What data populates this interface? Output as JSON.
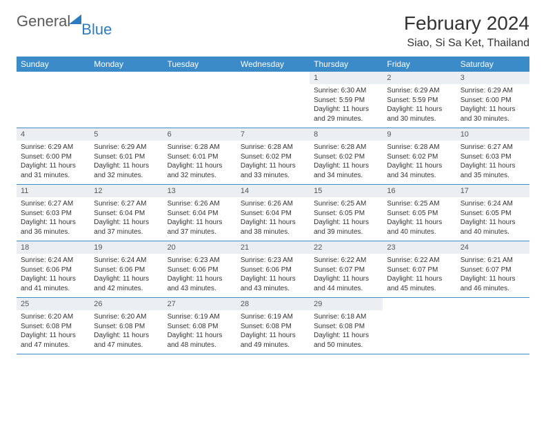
{
  "brand": {
    "main": "General",
    "sub": "Blue"
  },
  "header": {
    "month_title": "February 2024",
    "location": "Siao, Si Sa Ket, Thailand"
  },
  "colors": {
    "header_bg": "#3b8bc9",
    "header_text": "#ffffff",
    "daynum_bg": "#eceff1",
    "border": "#3b8bc9",
    "brand_gray": "#5a5a5a",
    "brand_blue": "#2b7bbf"
  },
  "dow": [
    "Sunday",
    "Monday",
    "Tuesday",
    "Wednesday",
    "Thursday",
    "Friday",
    "Saturday"
  ],
  "weeks": [
    [
      null,
      null,
      null,
      null,
      {
        "d": "1",
        "sr": "6:30 AM",
        "ss": "5:59 PM",
        "dl": "11 hours and 29 minutes."
      },
      {
        "d": "2",
        "sr": "6:29 AM",
        "ss": "5:59 PM",
        "dl": "11 hours and 30 minutes."
      },
      {
        "d": "3",
        "sr": "6:29 AM",
        "ss": "6:00 PM",
        "dl": "11 hours and 30 minutes."
      }
    ],
    [
      {
        "d": "4",
        "sr": "6:29 AM",
        "ss": "6:00 PM",
        "dl": "11 hours and 31 minutes."
      },
      {
        "d": "5",
        "sr": "6:29 AM",
        "ss": "6:01 PM",
        "dl": "11 hours and 32 minutes."
      },
      {
        "d": "6",
        "sr": "6:28 AM",
        "ss": "6:01 PM",
        "dl": "11 hours and 32 minutes."
      },
      {
        "d": "7",
        "sr": "6:28 AM",
        "ss": "6:02 PM",
        "dl": "11 hours and 33 minutes."
      },
      {
        "d": "8",
        "sr": "6:28 AM",
        "ss": "6:02 PM",
        "dl": "11 hours and 34 minutes."
      },
      {
        "d": "9",
        "sr": "6:28 AM",
        "ss": "6:02 PM",
        "dl": "11 hours and 34 minutes."
      },
      {
        "d": "10",
        "sr": "6:27 AM",
        "ss": "6:03 PM",
        "dl": "11 hours and 35 minutes."
      }
    ],
    [
      {
        "d": "11",
        "sr": "6:27 AM",
        "ss": "6:03 PM",
        "dl": "11 hours and 36 minutes."
      },
      {
        "d": "12",
        "sr": "6:27 AM",
        "ss": "6:04 PM",
        "dl": "11 hours and 37 minutes."
      },
      {
        "d": "13",
        "sr": "6:26 AM",
        "ss": "6:04 PM",
        "dl": "11 hours and 37 minutes."
      },
      {
        "d": "14",
        "sr": "6:26 AM",
        "ss": "6:04 PM",
        "dl": "11 hours and 38 minutes."
      },
      {
        "d": "15",
        "sr": "6:25 AM",
        "ss": "6:05 PM",
        "dl": "11 hours and 39 minutes."
      },
      {
        "d": "16",
        "sr": "6:25 AM",
        "ss": "6:05 PM",
        "dl": "11 hours and 40 minutes."
      },
      {
        "d": "17",
        "sr": "6:24 AM",
        "ss": "6:05 PM",
        "dl": "11 hours and 40 minutes."
      }
    ],
    [
      {
        "d": "18",
        "sr": "6:24 AM",
        "ss": "6:06 PM",
        "dl": "11 hours and 41 minutes."
      },
      {
        "d": "19",
        "sr": "6:24 AM",
        "ss": "6:06 PM",
        "dl": "11 hours and 42 minutes."
      },
      {
        "d": "20",
        "sr": "6:23 AM",
        "ss": "6:06 PM",
        "dl": "11 hours and 43 minutes."
      },
      {
        "d": "21",
        "sr": "6:23 AM",
        "ss": "6:06 PM",
        "dl": "11 hours and 43 minutes."
      },
      {
        "d": "22",
        "sr": "6:22 AM",
        "ss": "6:07 PM",
        "dl": "11 hours and 44 minutes."
      },
      {
        "d": "23",
        "sr": "6:22 AM",
        "ss": "6:07 PM",
        "dl": "11 hours and 45 minutes."
      },
      {
        "d": "24",
        "sr": "6:21 AM",
        "ss": "6:07 PM",
        "dl": "11 hours and 46 minutes."
      }
    ],
    [
      {
        "d": "25",
        "sr": "6:20 AM",
        "ss": "6:08 PM",
        "dl": "11 hours and 47 minutes."
      },
      {
        "d": "26",
        "sr": "6:20 AM",
        "ss": "6:08 PM",
        "dl": "11 hours and 47 minutes."
      },
      {
        "d": "27",
        "sr": "6:19 AM",
        "ss": "6:08 PM",
        "dl": "11 hours and 48 minutes."
      },
      {
        "d": "28",
        "sr": "6:19 AM",
        "ss": "6:08 PM",
        "dl": "11 hours and 49 minutes."
      },
      {
        "d": "29",
        "sr": "6:18 AM",
        "ss": "6:08 PM",
        "dl": "11 hours and 50 minutes."
      },
      null,
      null
    ]
  ],
  "labels": {
    "sunrise": "Sunrise: ",
    "sunset": "Sunset: ",
    "daylight": "Daylight: "
  }
}
